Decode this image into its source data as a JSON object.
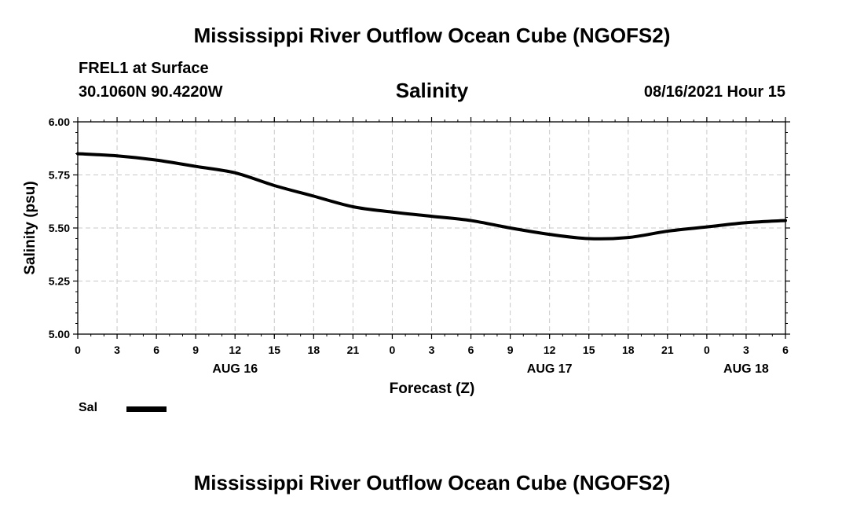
{
  "header": {
    "title": "Mississippi River Outflow Ocean Cube (NGOFS2)",
    "station": "FREL1 at Surface",
    "coords": "30.1060N  90.4220W",
    "variable": "Salinity",
    "datetime": "08/16/2021 Hour 15"
  },
  "footer": {
    "title": "Mississippi River Outflow Ocean Cube (NGOFS2)"
  },
  "chart_data": {
    "type": "line",
    "title": "Salinity",
    "xlabel": "Forecast (Z)",
    "ylabel": "Salinity (psu)",
    "ylim": [
      5.0,
      6.0
    ],
    "yticks": [
      5.0,
      5.25,
      5.5,
      5.75,
      6.0
    ],
    "ytick_labels": [
      "5.00",
      "5.25",
      "5.50",
      "5.75",
      "6.00"
    ],
    "xlim": [
      0,
      54
    ],
    "xticks": [
      0,
      3,
      6,
      9,
      12,
      15,
      18,
      21,
      24,
      27,
      30,
      33,
      36,
      39,
      42,
      45,
      48,
      51,
      54
    ],
    "xtick_labels": [
      "0",
      "3",
      "6",
      "9",
      "12",
      "15",
      "18",
      "21",
      "0",
      "3",
      "6",
      "9",
      "12",
      "15",
      "18",
      "21",
      "0",
      "3",
      "6"
    ],
    "date_labels": [
      {
        "x": 12,
        "text": "AUG 16"
      },
      {
        "x": 36,
        "text": "AUG 17"
      },
      {
        "x": 51,
        "text": "AUG 18"
      }
    ],
    "grid": true,
    "legend": "bottom-left",
    "series": [
      {
        "name": "Sal",
        "color": "#000000",
        "x": [
          0,
          3,
          6,
          9,
          12,
          15,
          18,
          21,
          24,
          27,
          30,
          33,
          36,
          39,
          42,
          45,
          48,
          51,
          54
        ],
        "values": [
          5.85,
          5.84,
          5.82,
          5.79,
          5.76,
          5.7,
          5.65,
          5.6,
          5.575,
          5.555,
          5.535,
          5.5,
          5.47,
          5.45,
          5.455,
          5.485,
          5.505,
          5.525,
          5.535
        ]
      }
    ]
  }
}
